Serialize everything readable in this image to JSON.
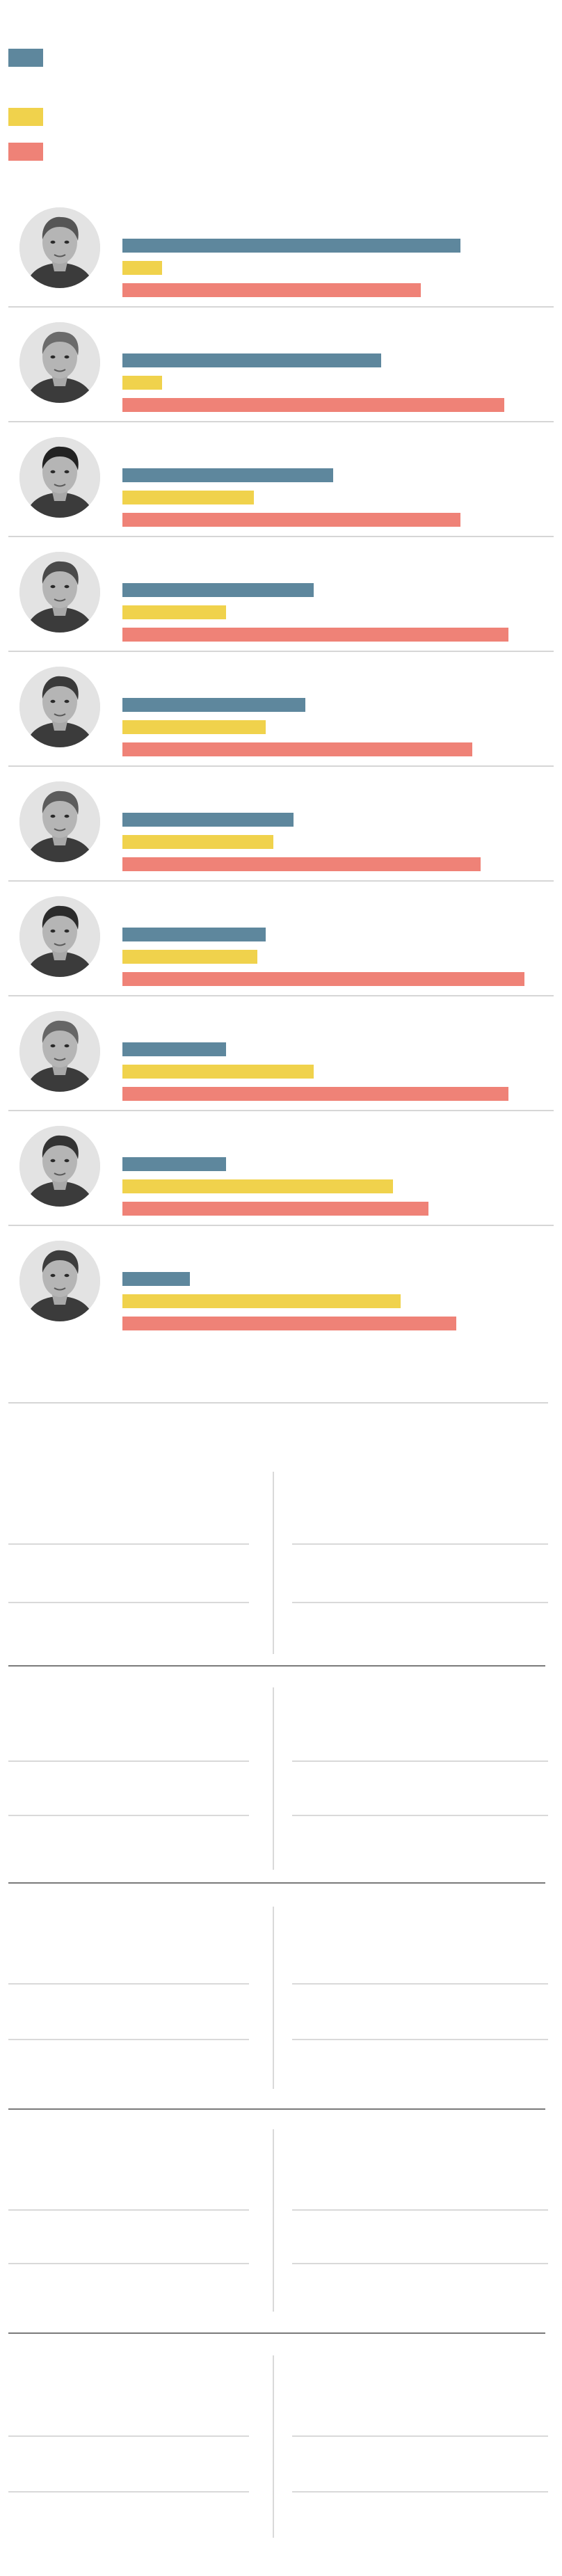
{
  "colors": {
    "series_a": "#5e879d",
    "series_b": "#f0d24c",
    "series_c": "#ef8277"
  },
  "chart_data": {
    "type": "bar",
    "orientation": "horizontal",
    "title": "",
    "xlabel": "",
    "ylabel": "",
    "grid": false,
    "legend": "top-left",
    "xlim": [
      0,
      100
    ],
    "categories": [
      "",
      "",
      "",
      "",
      "",
      "",
      "",
      "",
      "",
      ""
    ],
    "series": [
      {
        "color": "#5e879d",
        "values": [
          85,
          65,
          53,
          48,
          46,
          43,
          36,
          26,
          26,
          17
        ]
      },
      {
        "color": "#f0d24c",
        "values": [
          10,
          10,
          33,
          26,
          36,
          38,
          34,
          48,
          68,
          70
        ]
      },
      {
        "color": "#ef8277",
        "values": [
          75,
          96,
          85,
          97,
          88,
          90,
          101,
          97,
          77,
          84
        ]
      }
    ]
  },
  "candidates": [
    {
      "photo": "candidate-portrait-1"
    },
    {
      "photo": "candidate-portrait-2"
    },
    {
      "photo": "candidate-portrait-3"
    },
    {
      "photo": "candidate-portrait-4"
    },
    {
      "photo": "candidate-portrait-5"
    },
    {
      "photo": "candidate-portrait-6"
    },
    {
      "photo": "candidate-portrait-7"
    },
    {
      "photo": "candidate-portrait-8"
    },
    {
      "photo": "candidate-portrait-9"
    },
    {
      "photo": "candidate-portrait-10"
    }
  ]
}
